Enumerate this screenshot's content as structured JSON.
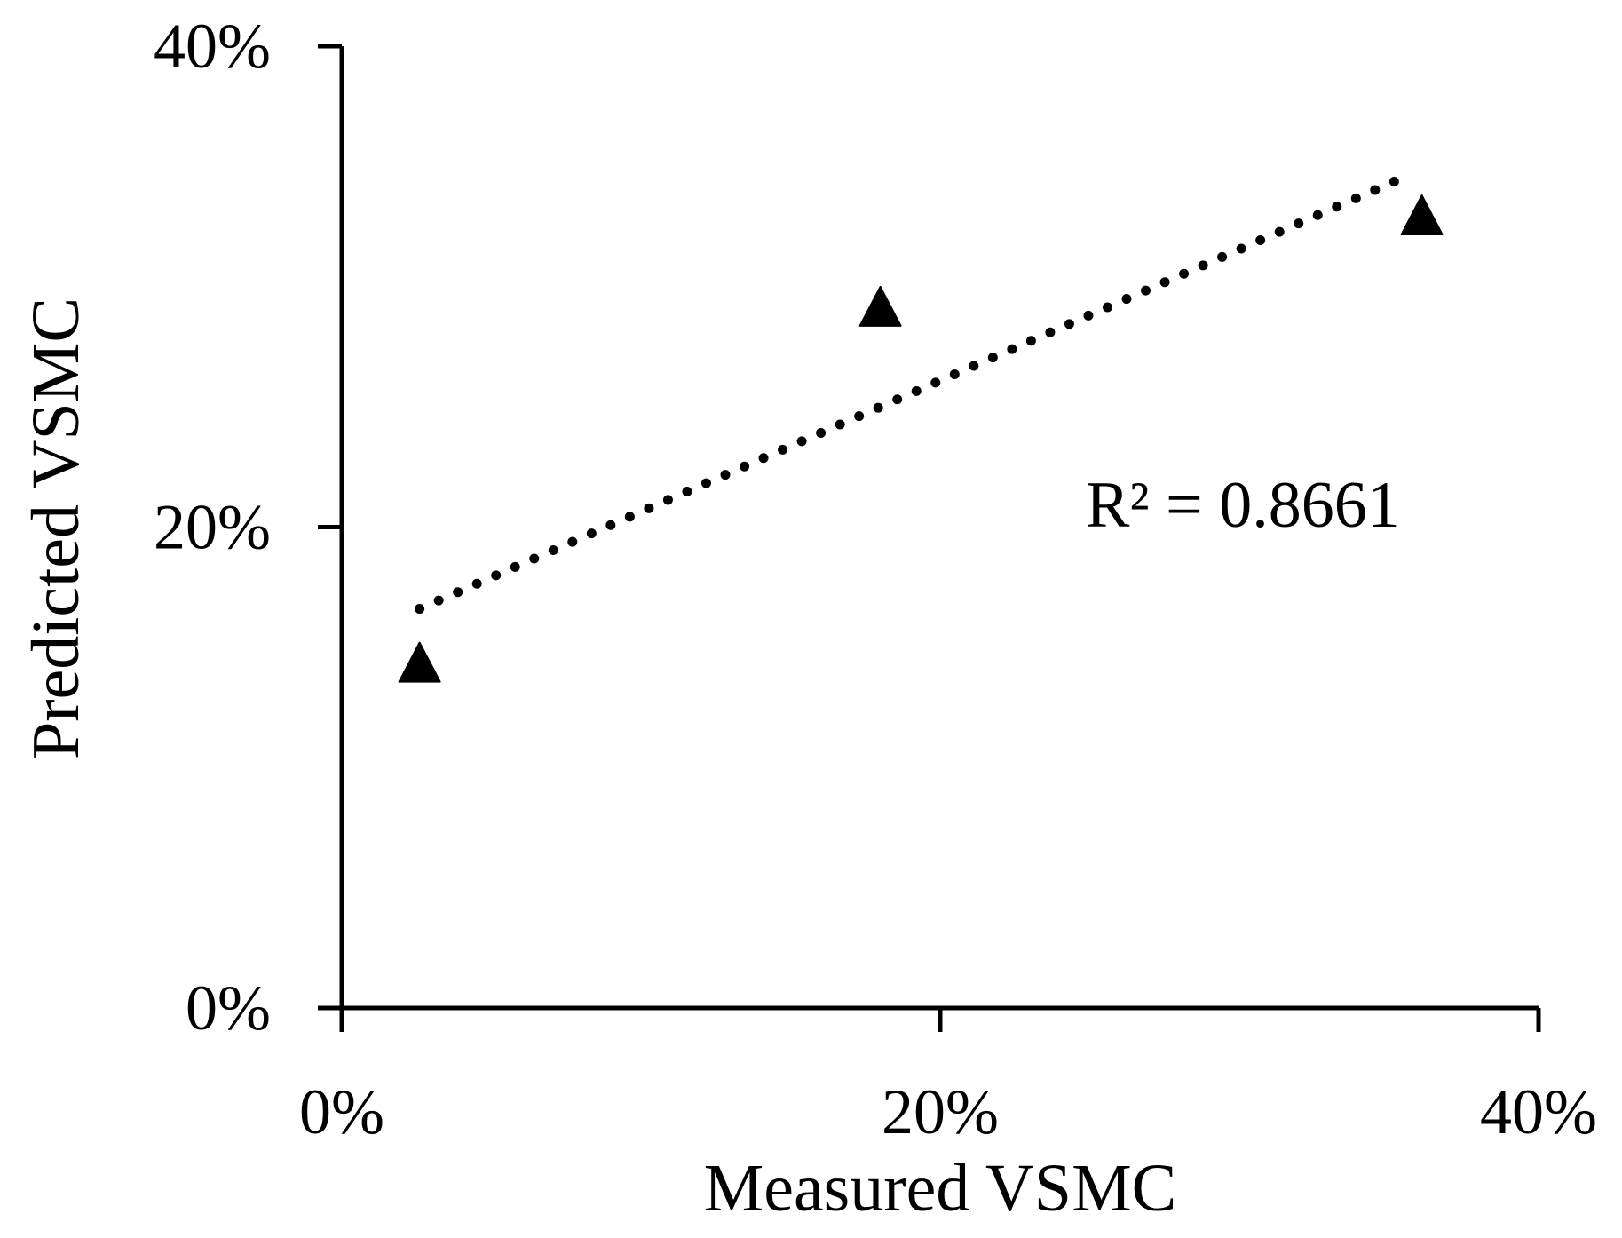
{
  "chart_data": {
    "type": "scatter",
    "title": "",
    "xlabel": "Measured VSMC",
    "ylabel": "Predicted VSMC",
    "xlim": [
      0,
      40
    ],
    "ylim": [
      0,
      40
    ],
    "x_ticks": [
      0,
      20,
      40
    ],
    "y_ticks": [
      0,
      20,
      40
    ],
    "x_tick_labels": [
      "0%",
      "20%",
      "40%"
    ],
    "y_tick_labels": [
      "0%",
      "20%",
      "40%"
    ],
    "grid": false,
    "legend": "none",
    "series": [
      {
        "name": "VSMC",
        "marker": "triangle",
        "color": "#000000",
        "x": [
          2.6,
          18.0,
          36.1
        ],
        "y": [
          14.3,
          29.1,
          32.9
        ]
      }
    ],
    "trendline": {
      "type": "linear",
      "style": "dotted",
      "color": "#000000",
      "x_range": [
        2.6,
        35.6
      ],
      "y_range": [
        16.6,
        34.6
      ]
    },
    "annotations": [
      {
        "text": "R² = 0.8661"
      }
    ]
  }
}
